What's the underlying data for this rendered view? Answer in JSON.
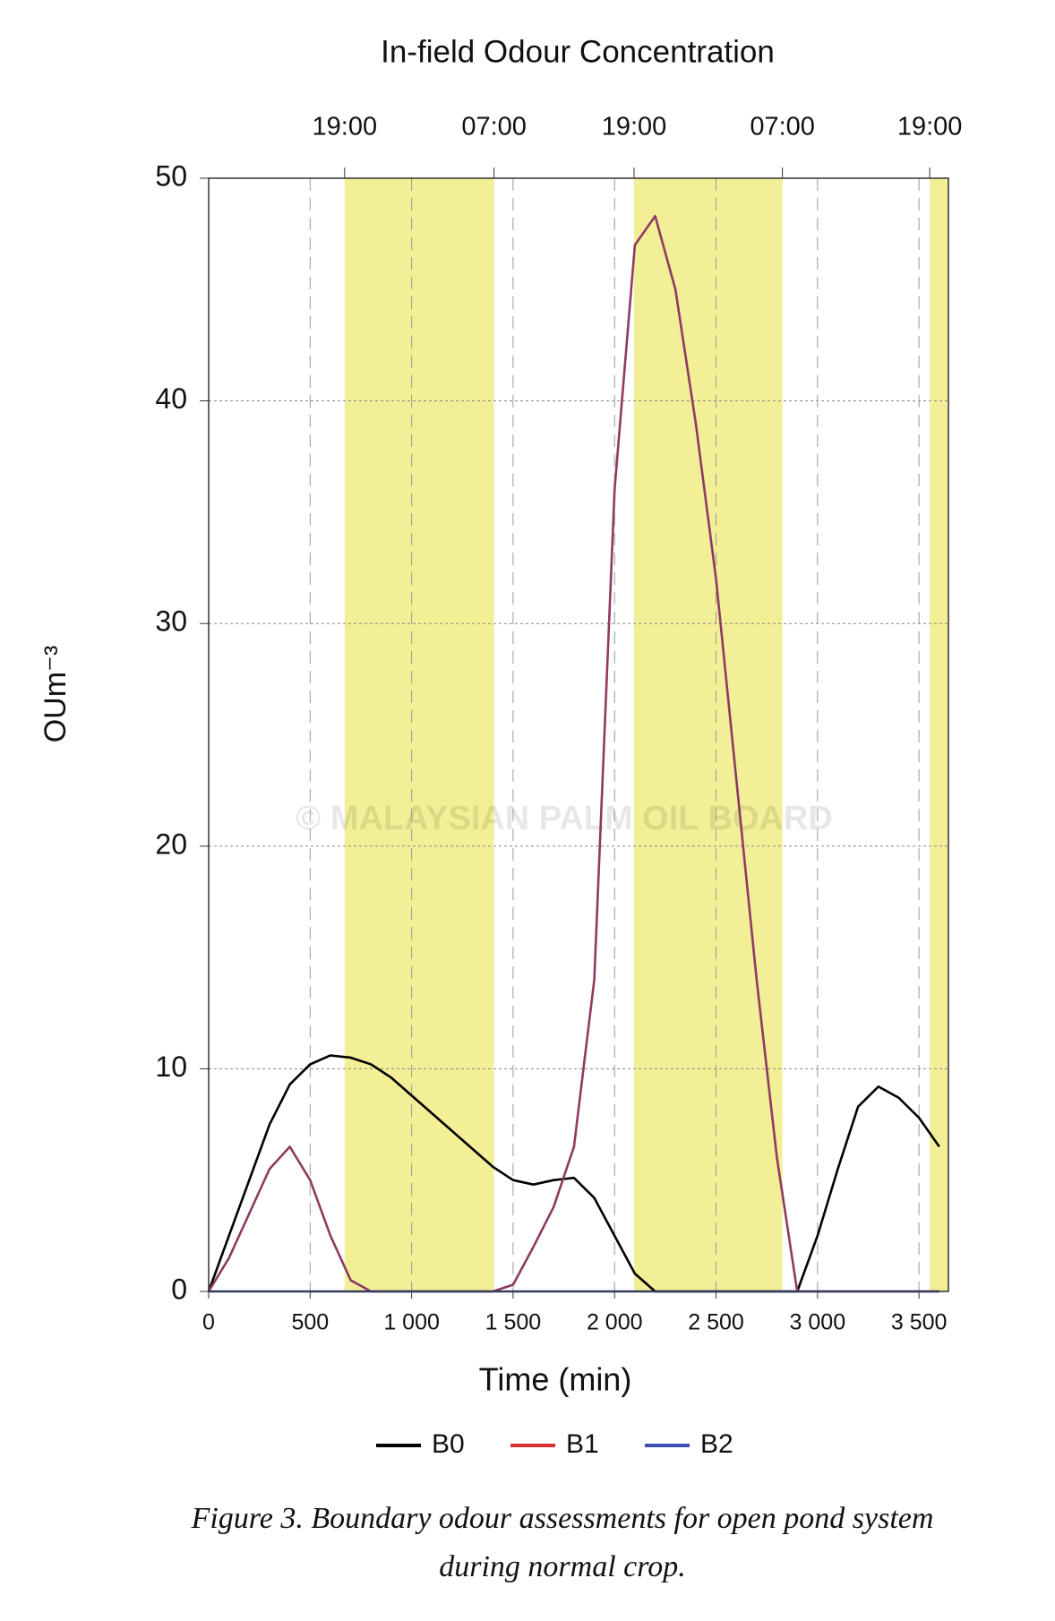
{
  "chart_data": {
    "type": "line",
    "title": "In-field Odour Concentration",
    "x_label": "Time (min)",
    "y_label": "OUm⁻³",
    "watermark": "© MALAYSIAN PALM OIL BOARD",
    "caption": [
      "Figure 3. Boundary odour assessments for open pond system",
      "during normal crop."
    ],
    "x": [
      0,
      100,
      200,
      300,
      400,
      500,
      600,
      700,
      800,
      900,
      1000,
      1100,
      1200,
      1300,
      1400,
      1500,
      1600,
      1700,
      1800,
      1900,
      2000,
      2100,
      2200,
      2300,
      2400,
      2500,
      2600,
      2700,
      2800,
      2900,
      3000,
      3100,
      3200,
      3300,
      3400,
      3500,
      3600
    ],
    "series": [
      {
        "name": "B0",
        "color": "#000000",
        "legend_color": "#000000",
        "values": [
          0,
          2.5,
          5,
          7.5,
          9.3,
          10.2,
          10.6,
          10.5,
          10.2,
          9.6,
          8.8,
          8,
          7.2,
          6.4,
          5.6,
          5,
          4.8,
          5,
          5.1,
          4.2,
          2.5,
          0.8,
          0,
          0,
          0,
          0,
          0,
          0,
          0,
          0,
          2.5,
          5.5,
          8.3,
          9.2,
          8.7,
          7.8,
          6.5
        ]
      },
      {
        "name": "B1",
        "color": "#8e3a62",
        "legend_color": "#d93030",
        "values": [
          0,
          1.5,
          3.5,
          5.5,
          6.5,
          5,
          2.5,
          0.5,
          0,
          0,
          0,
          0,
          0,
          0,
          0,
          0.3,
          2,
          3.8,
          6.5,
          14,
          36,
          47,
          48.3,
          45,
          39,
          32,
          23,
          14,
          6,
          0,
          0,
          0,
          0,
          0,
          0,
          0,
          0
        ]
      },
      {
        "name": "B2",
        "color": "#3a4fb0",
        "legend_color": "#3a4fb0",
        "values": [
          0,
          0,
          0,
          0,
          0,
          0,
          0,
          0,
          0,
          0,
          0,
          0,
          0,
          0,
          0,
          0,
          0,
          0,
          0,
          0,
          0,
          0,
          0,
          0,
          0,
          0,
          0,
          0,
          0,
          0,
          0,
          0,
          0,
          0,
          0,
          0,
          0
        ]
      }
    ],
    "xlim": [
      0,
      3645
    ],
    "ylim": [
      0,
      50
    ],
    "xticks": [
      0,
      500,
      {
        "value": 1000,
        "label": "1 000"
      },
      {
        "value": 1500,
        "label": "1 500"
      },
      {
        "value": 2000,
        "label": "2 000"
      },
      {
        "value": 2500,
        "label": "2 500"
      },
      {
        "value": 3000,
        "label": "3 000"
      },
      {
        "value": 3500,
        "label": "3 500"
      }
    ],
    "x2ticks": [
      {
        "value": 670,
        "label": "19:00"
      },
      {
        "value": 1406,
        "label": "07:00"
      },
      {
        "value": 2096,
        "label": "19:00"
      },
      {
        "value": 2827,
        "label": "07:00"
      },
      {
        "value": 3553,
        "label": "19:00"
      }
    ],
    "yticks": [
      0,
      10,
      20,
      30,
      40,
      50
    ],
    "shaded_spans": [
      [
        670,
        1406
      ],
      [
        2096,
        2827
      ],
      [
        3553,
        3645
      ]
    ],
    "shade_color": "#f2ef96",
    "grid": true
  }
}
